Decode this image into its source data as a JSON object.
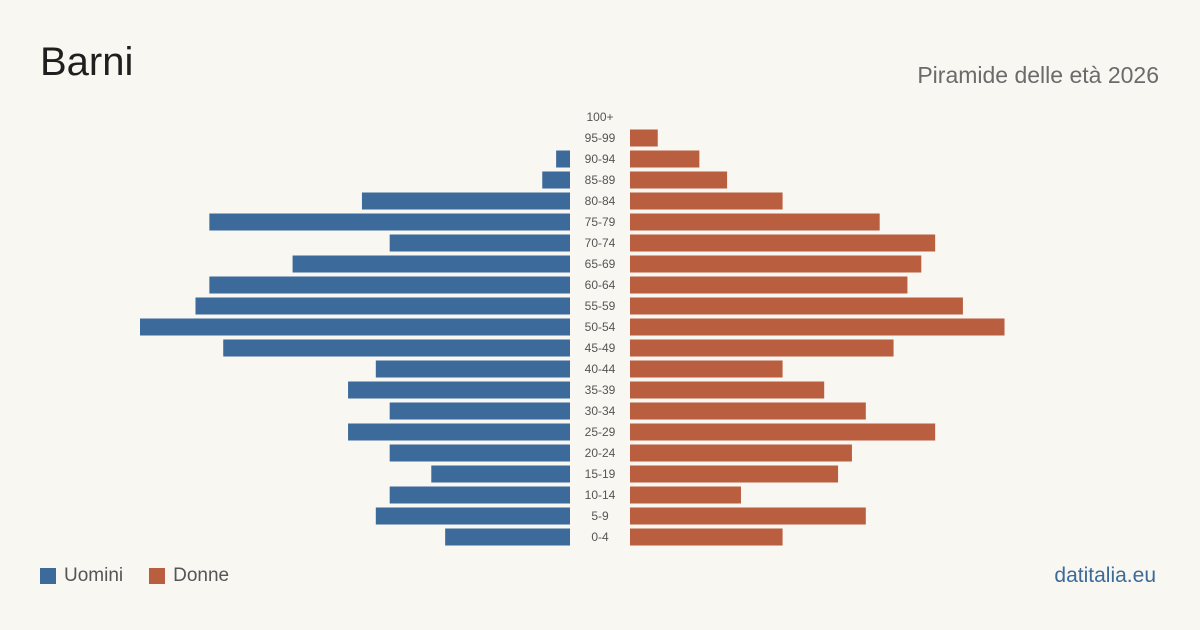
{
  "header": {
    "title": "Barni",
    "subtitle": "Piramide delle età 2026"
  },
  "legend": {
    "male_label": "Uomini",
    "female_label": "Donne"
  },
  "source": "datitalia.eu",
  "colors": {
    "male": "#3c6a9a",
    "female": "#b95e3e",
    "background": "#f9f7f2",
    "source_link": "#3c6a9a"
  },
  "chart_data": {
    "type": "bar",
    "orientation": "horizontal-pyramid",
    "categories": [
      "100+",
      "95-99",
      "90-94",
      "85-89",
      "80-84",
      "75-79",
      "70-74",
      "65-69",
      "60-64",
      "55-59",
      "50-54",
      "45-49",
      "40-44",
      "35-39",
      "30-34",
      "25-29",
      "20-24",
      "15-19",
      "10-14",
      "5-9",
      "0-4"
    ],
    "series": [
      {
        "name": "Uomini",
        "values": [
          0,
          0,
          1,
          2,
          15,
          26,
          13,
          20,
          26,
          27,
          31,
          25,
          14,
          16,
          13,
          16,
          13,
          10,
          13,
          14,
          9
        ]
      },
      {
        "name": "Donne",
        "values": [
          0,
          2,
          5,
          7,
          11,
          18,
          22,
          21,
          20,
          24,
          27,
          19,
          11,
          14,
          17,
          22,
          16,
          15,
          8,
          17,
          11
        ]
      }
    ],
    "grid": false,
    "legend_position": "bottom-left"
  }
}
